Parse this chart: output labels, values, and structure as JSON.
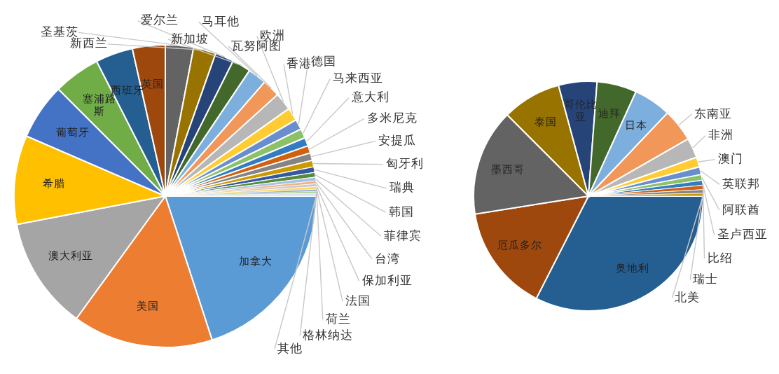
{
  "chart_data": [
    {
      "type": "pie",
      "categories": [
        "加拿大",
        "美国",
        "澳大利亚",
        "希腊",
        "葡萄牙",
        "塞浦路斯",
        "西班牙",
        "英国",
        "圣基茨",
        "新西兰",
        "爱尔兰",
        "新加坡",
        "马耳他",
        "瓦努阿图",
        "欧洲",
        "香港",
        "德国",
        "马来西亚",
        "意大利",
        "多米尼克",
        "安提瓜",
        "匈牙利",
        "瑞典",
        "韩国",
        "菲律宾",
        "台湾",
        "保加利亚",
        "法国",
        "荷兰",
        "格林纳达",
        "其他"
      ],
      "values": [
        20,
        15,
        12,
        9.5,
        6,
        5,
        4,
        3.5,
        3,
        2.4,
        2,
        2,
        2,
        1.9,
        1.9,
        1.4,
        1.1,
        1,
        0.9,
        0.8,
        0.8,
        0.7,
        0.6,
        0.5,
        0.4,
        0.3,
        0.3,
        0.3,
        0.2,
        0.2,
        0.3
      ],
      "colors": [
        "#5b9bd5",
        "#ed7d31",
        "#a5a5a5",
        "#ffc000",
        "#4472c4",
        "#70ad47",
        "#255e91",
        "#9e480e",
        "#636363",
        "#997300",
        "#264478",
        "#43682b",
        "#7cafdd",
        "#f1975a",
        "#b7b7b7",
        "#ffcd33",
        "#698ed0",
        "#8cc168",
        "#327dc2",
        "#d26012",
        "#848484",
        "#cc9a00",
        "#335aa1",
        "#5a8a39",
        "#a3c4e6",
        "#f4b183",
        "#c9c9c9",
        "#ffd966",
        "#8faadc",
        "#a9d18e",
        "#dae3f3"
      ]
    },
    {
      "type": "pie",
      "categories": [
        "奥地利",
        "厄瓜多尔",
        "墨西哥",
        "泰国",
        "哥伦比亚",
        "迪拜",
        "日本",
        "东南亚",
        "非洲",
        "澳门",
        "英联邦",
        "阿联酋",
        "圣卢西亚",
        "比绍",
        "瑞士",
        "北美"
      ],
      "values": [
        32.5,
        15,
        15,
        8.3,
        5.4,
        5.6,
        5.3,
        4.6,
        2.8,
        1.4,
        1.1,
        0.8,
        0.7,
        0.6,
        0.5,
        0.4
      ],
      "colors": [
        "#255e91",
        "#9e480e",
        "#636363",
        "#997300",
        "#264478",
        "#43682b",
        "#7cafdd",
        "#f1975a",
        "#b7b7b7",
        "#ffcd33",
        "#698ed0",
        "#8cc168",
        "#327dc2",
        "#d26012",
        "#848484",
        "#cc9a00"
      ]
    }
  ]
}
